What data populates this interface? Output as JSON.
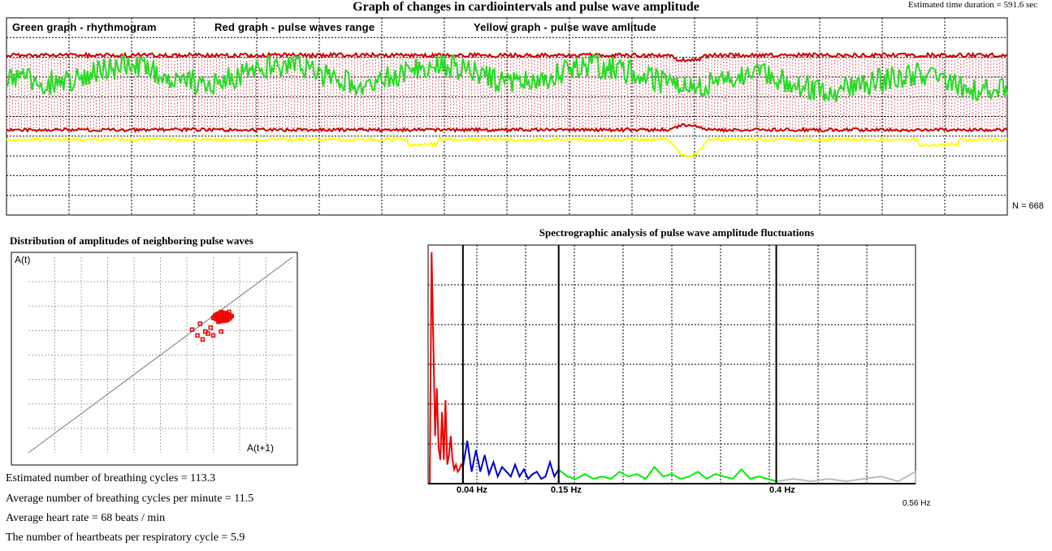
{
  "header": {
    "title": "Graph of changes in cardiointervals and pulse wave amplitude",
    "duration": "Estimated time duration = 591.6 sec"
  },
  "rhythm_panel": {
    "legend_green": "Green graph - rhythmogram",
    "legend_red": "Red graph - pulse waves range",
    "legend_yellow": "Yellow graph -  pulse wave amlitude",
    "n_label": "N = 668"
  },
  "scatter_panel": {
    "title": "Distribution of amplitudes of neighboring pulse waves",
    "y_label": "A(t)",
    "x_label": "A(t+1)"
  },
  "spectrum_panel": {
    "title": "Spectrographic analysis of pulse wave amplitude fluctuations",
    "freq_labels": [
      "0.04 Hz",
      "0.15 Hz",
      "0.4 Hz"
    ],
    "freq_end": "0.56 Hz"
  },
  "stats": {
    "breathing_cycles": "Estimated number of breathing cycles  =  113.3",
    "breathing_per_minute": "Average number of breathing cycles per minute = 11.5",
    "heart_rate": "Average heart rate = 68 beats / min",
    "heartbeats_per_cycle": "The number of heartbeats per respiratory cycle =  5.9"
  },
  "colors": {
    "rhythmogram": "#22dd22",
    "range": "#cc0000",
    "amplitude": "#ffff00",
    "vlf": "#ee0000",
    "lf": "#0000cc",
    "hf": "#00ee00",
    "above_hf": "#bbbbbb"
  },
  "chart_data": [
    {
      "type": "line",
      "title": "Graph of changes in cardiointervals and pulse wave amplitude",
      "n": 668,
      "duration_sec": 591.6,
      "grid": true,
      "series": [
        {
          "name": "Green graph - rhythmogram"
        },
        {
          "name": "Red graph - pulse waves range"
        },
        {
          "name": "Yellow graph -  pulse wave amlitude"
        }
      ]
    },
    {
      "type": "scatter",
      "title": "Distribution of amplitudes of neighboring pulse waves",
      "xlabel": "A(t+1)",
      "ylabel": "A(t)",
      "grid": true,
      "points": [
        [
          0.72,
          0.69
        ],
        [
          0.74,
          0.71
        ],
        [
          0.73,
          0.68
        ],
        [
          0.75,
          0.7
        ],
        [
          0.76,
          0.72
        ],
        [
          0.73,
          0.72
        ],
        [
          0.71,
          0.7
        ],
        [
          0.7,
          0.69
        ],
        [
          0.74,
          0.69
        ],
        [
          0.72,
          0.67
        ],
        [
          0.75,
          0.68
        ],
        [
          0.77,
          0.7
        ],
        [
          0.69,
          0.64
        ],
        [
          0.67,
          0.62
        ],
        [
          0.68,
          0.61
        ],
        [
          0.64,
          0.6
        ],
        [
          0.66,
          0.58
        ],
        [
          0.7,
          0.6
        ],
        [
          0.73,
          0.62
        ],
        [
          0.62,
          0.63
        ],
        [
          0.65,
          0.66
        ]
      ]
    },
    {
      "type": "area",
      "title": "Spectrographic analysis of pulse wave amplitude fluctuations",
      "xlabel": "",
      "ylabel": "",
      "xlim": [
        0,
        0.56
      ],
      "band_edges": [
        0.04,
        0.15,
        0.4
      ],
      "bands": [
        {
          "range": [
            0.0,
            0.04
          ],
          "color": "#ee0000"
        },
        {
          "range": [
            0.04,
            0.15
          ],
          "color": "#0000cc"
        },
        {
          "range": [
            0.15,
            0.4
          ],
          "color": "#00ee00"
        },
        {
          "range": [
            0.4,
            0.56
          ],
          "color": "#bbbbbb"
        }
      ],
      "x": [
        0.002,
        0.004,
        0.006,
        0.008,
        0.01,
        0.012,
        0.014,
        0.016,
        0.018,
        0.02,
        0.022,
        0.024,
        0.026,
        0.028,
        0.03,
        0.032,
        0.034,
        0.036,
        0.038,
        0.04,
        0.045,
        0.05,
        0.055,
        0.06,
        0.065,
        0.07,
        0.075,
        0.08,
        0.085,
        0.09,
        0.095,
        0.1,
        0.105,
        0.11,
        0.115,
        0.12,
        0.125,
        0.13,
        0.135,
        0.14,
        0.145,
        0.15,
        0.16,
        0.17,
        0.18,
        0.19,
        0.2,
        0.21,
        0.22,
        0.23,
        0.24,
        0.25,
        0.26,
        0.27,
        0.28,
        0.29,
        0.3,
        0.31,
        0.32,
        0.33,
        0.34,
        0.35,
        0.36,
        0.37,
        0.38,
        0.39,
        0.4,
        0.42,
        0.44,
        0.46,
        0.48,
        0.5,
        0.52,
        0.54,
        0.56
      ],
      "values": [
        0.05,
        0.97,
        0.6,
        0.2,
        0.4,
        0.15,
        0.1,
        0.3,
        0.1,
        0.35,
        0.08,
        0.12,
        0.2,
        0.1,
        0.06,
        0.08,
        0.05,
        0.06,
        0.08,
        0.07,
        0.18,
        0.05,
        0.14,
        0.05,
        0.12,
        0.04,
        0.09,
        0.03,
        0.07,
        0.05,
        0.03,
        0.08,
        0.03,
        0.06,
        0.02,
        0.04,
        0.05,
        0.02,
        0.03,
        0.09,
        0.03,
        0.06,
        0.03,
        0.02,
        0.04,
        0.02,
        0.03,
        0.02,
        0.05,
        0.03,
        0.04,
        0.02,
        0.07,
        0.03,
        0.04,
        0.02,
        0.03,
        0.05,
        0.02,
        0.04,
        0.03,
        0.02,
        0.06,
        0.02,
        0.03,
        0.02,
        0.01,
        0.02,
        0.01,
        0.02,
        0.01,
        0.02,
        0.03,
        0.01,
        0.05
      ]
    }
  ]
}
